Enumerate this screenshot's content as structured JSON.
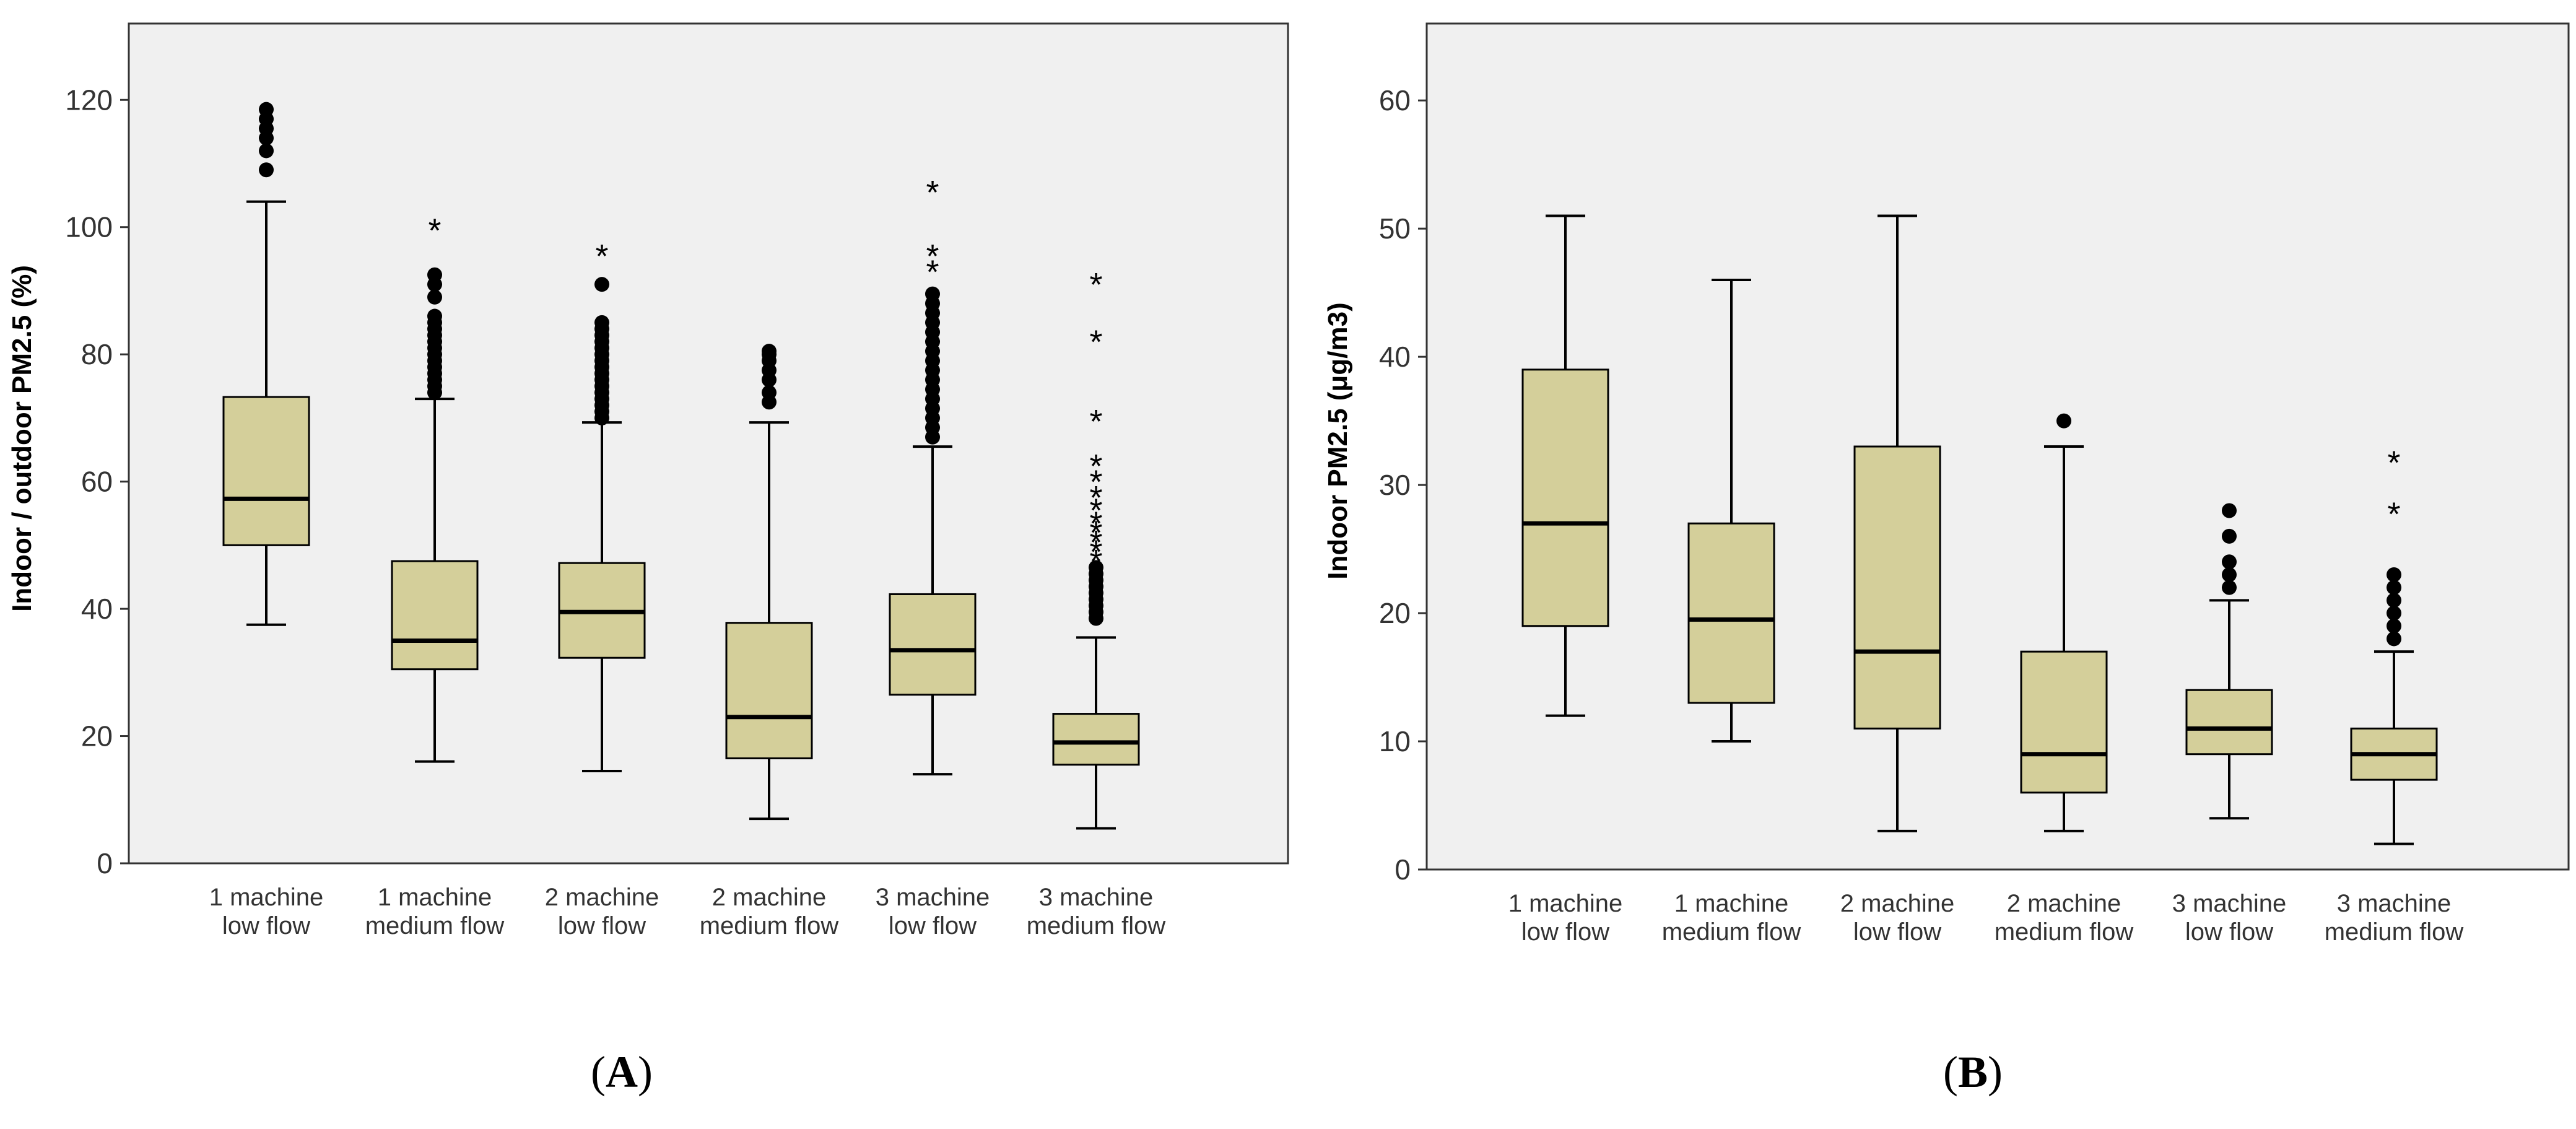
{
  "chart_data": [
    {
      "type": "boxplot",
      "panel_label": "A",
      "ylabel": "Indoor / outdoor PM2.5 (%)",
      "xlabel": "",
      "ylim": [
        0,
        132
      ],
      "yticks": [
        0,
        20,
        40,
        60,
        80,
        100,
        120
      ],
      "categories": [
        [
          "1 machine",
          "low flow"
        ],
        [
          "1 machine",
          "medium flow"
        ],
        [
          "2 machine",
          "low flow"
        ],
        [
          "2 machine",
          "medium flow"
        ],
        [
          "3 machine",
          "low flow"
        ],
        [
          "3 machine",
          "medium flow"
        ]
      ],
      "boxes": [
        {
          "whisker_low": 37.5,
          "q1": 50,
          "median": 57.3,
          "q3": 73.3,
          "whisker_high": 104,
          "outliers": [
            109,
            112,
            114,
            115.5,
            117,
            118.5
          ],
          "extremes": []
        },
        {
          "whisker_low": 16,
          "q1": 30.5,
          "median": 35,
          "q3": 47.5,
          "whisker_high": 73,
          "outliers": [
            74,
            75,
            76,
            77,
            78,
            79,
            80,
            81,
            82,
            83,
            84,
            85,
            86,
            89,
            91,
            92.5
          ],
          "extremes": [
            100
          ]
        },
        {
          "whisker_low": 14.5,
          "q1": 32.3,
          "median": 39.5,
          "q3": 47.2,
          "whisker_high": 69.3,
          "outliers": [
            70,
            71,
            72,
            73,
            74,
            75,
            76,
            77,
            78,
            79,
            80,
            81,
            82,
            83,
            84,
            85,
            91
          ],
          "extremes": [
            96
          ]
        },
        {
          "whisker_low": 7,
          "q1": 16.5,
          "median": 23,
          "q3": 37.8,
          "whisker_high": 69.3,
          "outliers": [
            72.5,
            74,
            76,
            77.5,
            79,
            80,
            80.5
          ],
          "extremes": []
        },
        {
          "whisker_low": 14,
          "q1": 26.5,
          "median": 33.5,
          "q3": 42.3,
          "whisker_high": 65.5,
          "outliers": [
            67,
            68.5,
            70,
            71.5,
            73,
            74.5,
            76,
            77.5,
            79,
            80.5,
            82,
            83.5,
            85,
            86.5,
            88,
            89.5
          ],
          "extremes": [
            93.5,
            96,
            106
          ]
        },
        {
          "whisker_low": 5.5,
          "q1": 15.5,
          "median": 19,
          "q3": 23.5,
          "whisker_high": 35.5,
          "outliers": [
            38.5,
            39.5,
            40.5,
            41.5,
            42.5,
            43.5,
            44.5,
            45.5,
            46.5
          ],
          "extremes": [
            48,
            49.5,
            51,
            52.5,
            54,
            56,
            58,
            60.5,
            63,
            70,
            82.5,
            91.5
          ]
        }
      ]
    },
    {
      "type": "boxplot",
      "panel_label": "B",
      "ylabel": "Indoor PM2.5 (μg/m3)",
      "xlabel": "",
      "ylim": [
        0,
        66
      ],
      "yticks": [
        0,
        10,
        20,
        30,
        40,
        50,
        60
      ],
      "categories": [
        [
          "1 machine",
          "low flow"
        ],
        [
          "1 machine",
          "medium flow"
        ],
        [
          "2 machine",
          "low flow"
        ],
        [
          "2 machine",
          "medium flow"
        ],
        [
          "3 machine",
          "low flow"
        ],
        [
          "3 machine",
          "medium flow"
        ]
      ],
      "boxes": [
        {
          "whisker_low": 12,
          "q1": 19,
          "median": 27,
          "q3": 39,
          "whisker_high": 51,
          "outliers": [],
          "extremes": []
        },
        {
          "whisker_low": 10,
          "q1": 13,
          "median": 19.5,
          "q3": 27,
          "whisker_high": 46,
          "outliers": [],
          "extremes": []
        },
        {
          "whisker_low": 3,
          "q1": 11,
          "median": 17,
          "q3": 33,
          "whisker_high": 51,
          "outliers": [],
          "extremes": []
        },
        {
          "whisker_low": 3,
          "q1": 6,
          "median": 9,
          "q3": 17,
          "whisker_high": 33,
          "outliers": [
            35
          ],
          "extremes": []
        },
        {
          "whisker_low": 4,
          "q1": 9,
          "median": 11,
          "q3": 14,
          "whisker_high": 21,
          "outliers": [
            22,
            23,
            24,
            26,
            28
          ],
          "extremes": []
        },
        {
          "whisker_low": 2,
          "q1": 7,
          "median": 9,
          "q3": 11,
          "whisker_high": 17,
          "outliers": [
            18,
            19,
            20,
            21,
            22,
            23
          ],
          "extremes": [
            28,
            32
          ]
        }
      ]
    }
  ],
  "style": {
    "plot_bg": "#f0f0f0",
    "box_fill": "#d4cf9a",
    "line_color": "#000000",
    "frame_color": "#333333",
    "tick_text_color": "#333333"
  }
}
